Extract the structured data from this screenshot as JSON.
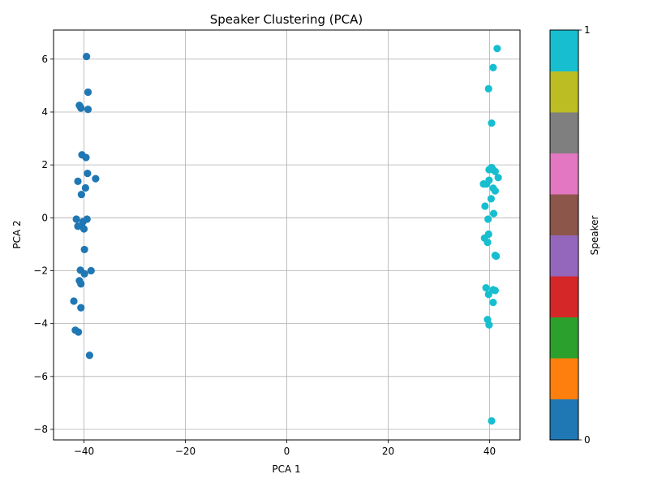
{
  "chart_data": {
    "type": "scatter",
    "title": "Speaker Clustering (PCA)",
    "xlabel": "PCA 1",
    "ylabel": "PCA 2",
    "xlim": [
      -46,
      46
    ],
    "ylim": [
      -8.4,
      7.1
    ],
    "xticks": [
      -40,
      -20,
      0,
      20,
      40
    ],
    "xtick_labels": [
      "−40",
      "−20",
      "0",
      "20",
      "40"
    ],
    "yticks": [
      -8,
      -6,
      -4,
      -2,
      0,
      2,
      4,
      6
    ],
    "ytick_labels": [
      "−8",
      "−6",
      "−4",
      "−2",
      "0",
      "2",
      "4",
      "6"
    ],
    "grid": true,
    "colormap": "tab10",
    "colormap_colors": [
      "#1f77b4",
      "#ff7f0e",
      "#2ca02c",
      "#d62728",
      "#9467bd",
      "#8c564b",
      "#e377c2",
      "#7f7f7f",
      "#bcbd22",
      "#17becf"
    ],
    "colorbar": {
      "label": "Speaker",
      "ticks": [
        0,
        1
      ],
      "tick_labels": [
        "0",
        "1"
      ]
    },
    "series": [
      {
        "color": "#1f77b4",
        "points": [
          [
            -39.5,
            6.1
          ],
          [
            -39.2,
            4.75
          ],
          [
            -40.9,
            4.25
          ],
          [
            -40.6,
            4.15
          ],
          [
            -39.2,
            4.1
          ],
          [
            -40.4,
            2.38
          ],
          [
            -39.6,
            2.28
          ],
          [
            -39.3,
            1.68
          ],
          [
            -37.7,
            1.48
          ],
          [
            -41.2,
            1.38
          ],
          [
            -39.7,
            1.13
          ],
          [
            -40.5,
            0.88
          ],
          [
            -41.5,
            -0.05
          ],
          [
            -39.4,
            -0.05
          ],
          [
            -40.2,
            -0.15
          ],
          [
            -41.2,
            -0.32
          ],
          [
            -40.5,
            -0.3
          ],
          [
            -40.0,
            -0.42
          ],
          [
            -39.9,
            -1.2
          ],
          [
            -40.7,
            -1.98
          ],
          [
            -38.6,
            -2.0
          ],
          [
            -39.9,
            -2.12
          ],
          [
            -40.9,
            -2.38
          ],
          [
            -40.6,
            -2.5
          ],
          [
            -42.0,
            -3.15
          ],
          [
            -40.6,
            -3.4
          ],
          [
            -41.7,
            -4.25
          ],
          [
            -41.1,
            -4.32
          ],
          [
            -38.9,
            -5.2
          ]
        ]
      },
      {
        "color": "#17becf",
        "points": [
          [
            41.5,
            6.4
          ],
          [
            40.7,
            5.68
          ],
          [
            39.8,
            4.88
          ],
          [
            40.4,
            3.58
          ],
          [
            40.4,
            1.9
          ],
          [
            39.9,
            1.82
          ],
          [
            40.7,
            1.82
          ],
          [
            41.1,
            1.75
          ],
          [
            41.7,
            1.52
          ],
          [
            39.9,
            1.42
          ],
          [
            39.4,
            1.28
          ],
          [
            38.8,
            1.28
          ],
          [
            40.7,
            1.12
          ],
          [
            41.1,
            1.02
          ],
          [
            40.3,
            0.72
          ],
          [
            39.1,
            0.44
          ],
          [
            40.8,
            0.16
          ],
          [
            39.7,
            -0.05
          ],
          [
            39.8,
            -0.62
          ],
          [
            39.0,
            -0.77
          ],
          [
            39.6,
            -0.93
          ],
          [
            41.1,
            -1.42
          ],
          [
            41.3,
            -1.45
          ],
          [
            39.3,
            -2.65
          ],
          [
            40.7,
            -2.72
          ],
          [
            41.1,
            -2.75
          ],
          [
            39.8,
            -2.9
          ],
          [
            40.7,
            -3.2
          ],
          [
            39.6,
            -3.85
          ],
          [
            39.9,
            -4.05
          ],
          [
            40.4,
            -7.68
          ]
        ]
      }
    ]
  }
}
